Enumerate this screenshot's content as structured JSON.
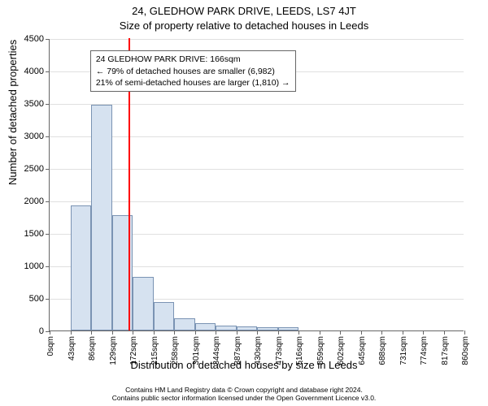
{
  "title_main": "24, GLEDHOW PARK DRIVE, LEEDS, LS7 4JT",
  "title_sub": "Size of property relative to detached houses in Leeds",
  "y_axis_label": "Number of detached properties",
  "x_axis_label": "Distribution of detached houses by size in Leeds",
  "chart": {
    "type": "histogram",
    "background_color": "#ffffff",
    "grid_color": "#e0e0e0",
    "axis_color": "#666666",
    "bar_fill": "#d6e2f0",
    "bar_border": "#7a93b3",
    "marker_color": "#ff0000",
    "ylim": [
      0,
      4500
    ],
    "ytick_step": 500,
    "yticks": [
      0,
      500,
      1000,
      1500,
      2000,
      2500,
      3000,
      3500,
      4000,
      4500
    ],
    "xticks": [
      0,
      43,
      86,
      129,
      172,
      215,
      258,
      301,
      344,
      387,
      430,
      473,
      516,
      559,
      602,
      645,
      688,
      731,
      774,
      817,
      860
    ],
    "xtick_suffix": "sqm",
    "xlim": [
      0,
      860
    ],
    "bar_width_sqm": 43,
    "bars": [
      {
        "x": 0,
        "value": 0
      },
      {
        "x": 43,
        "value": 1920
      },
      {
        "x": 86,
        "value": 3470
      },
      {
        "x": 129,
        "value": 1770
      },
      {
        "x": 172,
        "value": 830
      },
      {
        "x": 215,
        "value": 440
      },
      {
        "x": 258,
        "value": 190
      },
      {
        "x": 301,
        "value": 110
      },
      {
        "x": 344,
        "value": 80
      },
      {
        "x": 387,
        "value": 60
      },
      {
        "x": 430,
        "value": 55
      },
      {
        "x": 473,
        "value": 50
      },
      {
        "x": 516,
        "value": 0
      },
      {
        "x": 559,
        "value": 0
      },
      {
        "x": 602,
        "value": 0
      },
      {
        "x": 645,
        "value": 0
      },
      {
        "x": 688,
        "value": 0
      },
      {
        "x": 731,
        "value": 0
      },
      {
        "x": 774,
        "value": 0
      },
      {
        "x": 817,
        "value": 0
      }
    ],
    "marker_x": 166,
    "annotation": {
      "line1": "24 GLEDHOW PARK DRIVE: 166sqm",
      "line2": "← 79% of detached houses are smaller (6,982)",
      "line3": "21% of semi-detached houses are larger (1,810) →",
      "box_x_sqm": 84,
      "box_top_value": 4320,
      "border_color": "#666666",
      "font_size_pt": 10.5
    },
    "title_fontsize": 13,
    "label_fontsize": 13,
    "tick_fontsize": 11,
    "xtick_fontsize": 10
  },
  "footer_line1": "Contains HM Land Registry data © Crown copyright and database right 2024.",
  "footer_line2": "Contains public sector information licensed under the Open Government Licence v3.0."
}
